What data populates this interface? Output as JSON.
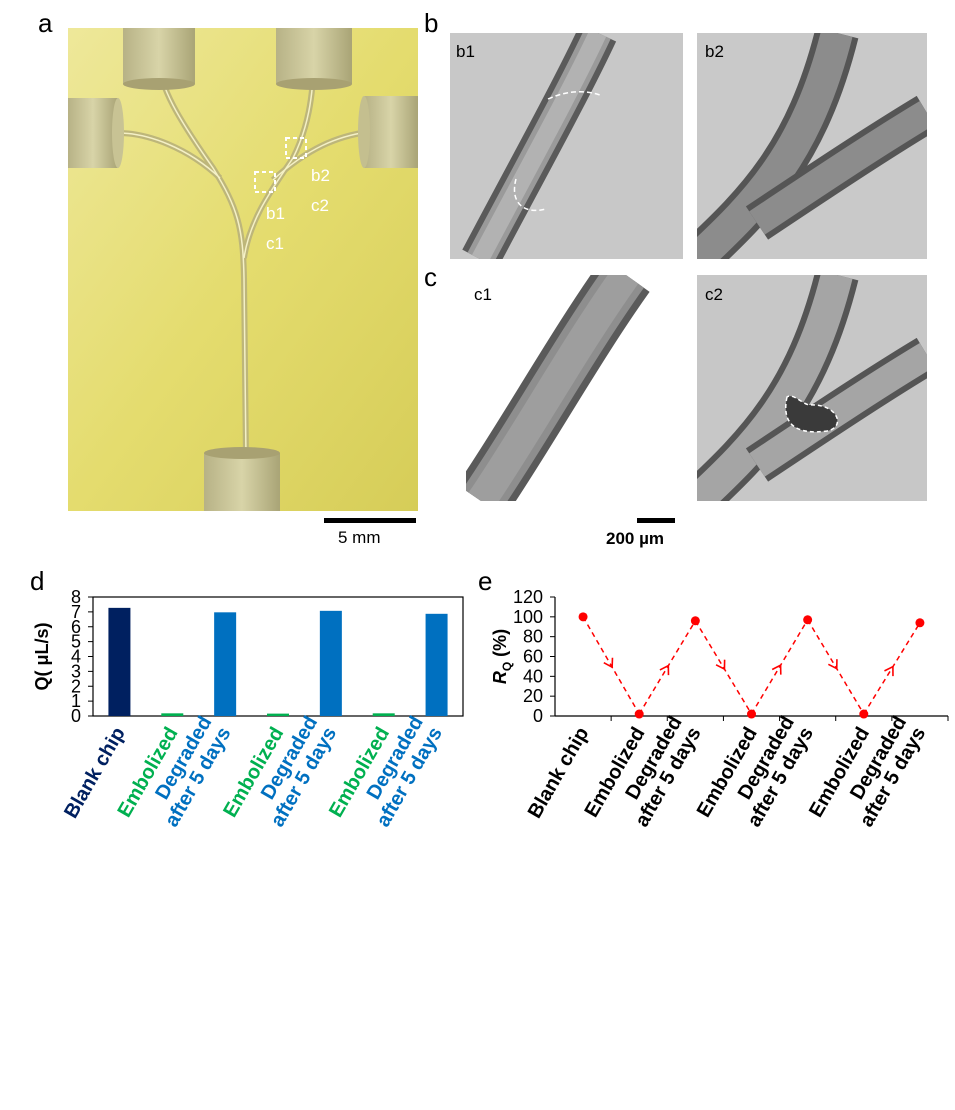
{
  "panels": {
    "a": "a",
    "b": "b",
    "c": "c",
    "d": "d",
    "e": "e"
  },
  "chip_photo": {
    "labels": [
      "b2",
      "c2",
      "b1",
      "c1"
    ],
    "scale_bar": "5 mm"
  },
  "micrographs": {
    "b1": "b1",
    "b2": "b2",
    "c1": "c1",
    "c2": "c2",
    "scale_bar": "200 µm"
  },
  "colors": {
    "blank": "#002060",
    "embolized": "#00b050",
    "degraded": "#0070c0",
    "line": "#ff0000",
    "chip": "#e8e07a"
  },
  "chart_data": [
    {
      "type": "bar",
      "categories": [
        "Blank chip",
        "Embolized",
        "Degraded after 5 days",
        "Embolized",
        "Degraded after 5 days",
        "Embolized",
        "Degraded after 5 days"
      ],
      "category_lines": [
        [
          "Blank chip"
        ],
        [
          "Embolized"
        ],
        [
          "Degraded",
          "after 5 days"
        ],
        [
          "Embolized"
        ],
        [
          "Degraded",
          "after 5 days"
        ],
        [
          "Embolized"
        ],
        [
          "Degraded",
          "after 5 days"
        ]
      ],
      "values": [
        7.27,
        0.18,
        6.97,
        0.16,
        7.07,
        0.18,
        6.87
      ],
      "bar_colors": [
        "#002060",
        "#00b050",
        "#0070c0",
        "#00b050",
        "#0070c0",
        "#00b050",
        "#0070c0"
      ],
      "ylabel": "Q( μL/s)",
      "ylim": [
        0,
        8
      ],
      "yticks": [
        "0",
        "1",
        "2",
        "3",
        "4",
        "5",
        "6",
        "7",
        "8"
      ]
    },
    {
      "type": "line",
      "categories": [
        "Blank chip",
        "Embolized",
        "Degraded after 5 days",
        "Embolized",
        "Degraded after 5 days",
        "Embolized",
        "Degraded after 5 days"
      ],
      "category_lines": [
        [
          "Blank chip"
        ],
        [
          "Embolized"
        ],
        [
          "Degraded",
          "after 5 days"
        ],
        [
          "Embolized"
        ],
        [
          "Degraded",
          "after 5 days"
        ],
        [
          "Embolized"
        ],
        [
          "Degraded",
          "after 5 days"
        ]
      ],
      "values": [
        100,
        2,
        96,
        2,
        97,
        2,
        94
      ],
      "ylabel_main": "R",
      "ylabel_sub": "Q",
      "ylabel_rest": " (%)",
      "ylim": [
        0,
        120
      ],
      "yticks": [
        "0",
        "20",
        "40",
        "60",
        "80",
        "100",
        "120"
      ]
    }
  ]
}
